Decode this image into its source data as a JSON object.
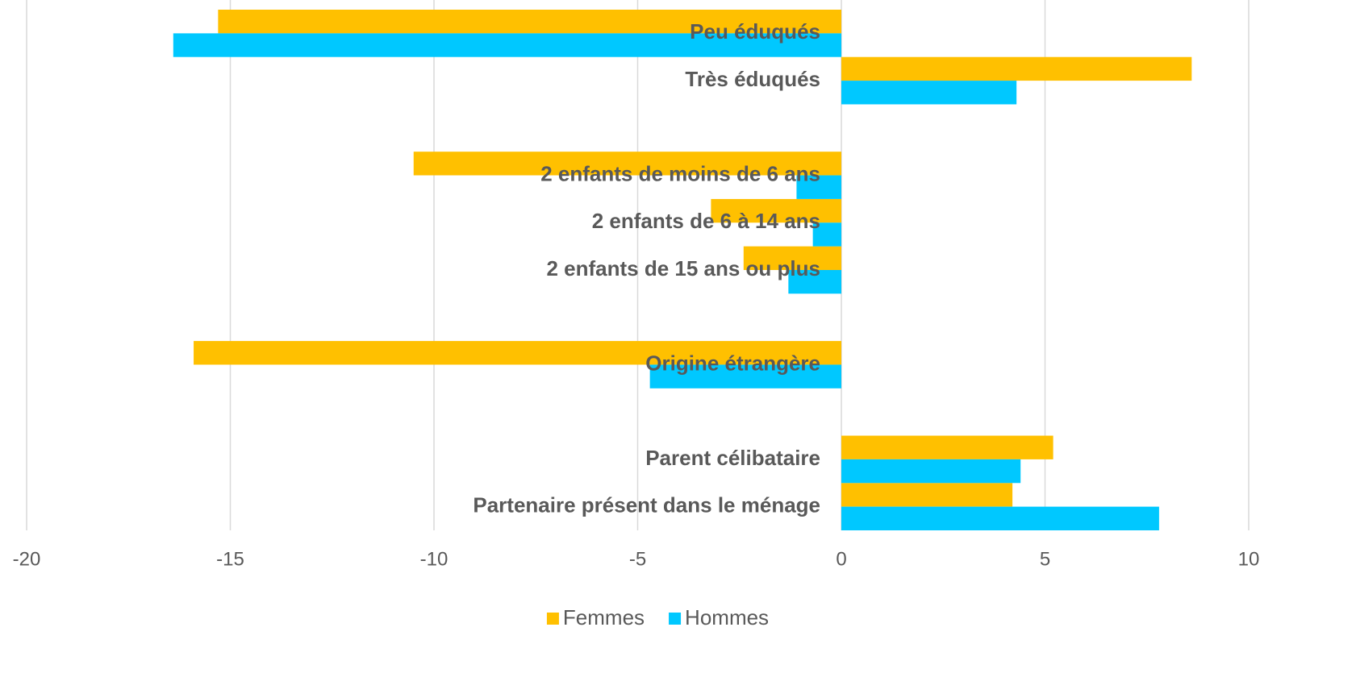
{
  "chart_data": {
    "type": "barh",
    "categories": [
      "Peu éduqués",
      "Très éduqués",
      null,
      "2 enfants de moins de 6 ans",
      "2 enfants de 6 à 14 ans",
      "2 enfants de 15 ans ou plus",
      null,
      "Origine étrangère",
      null,
      "Parent célibataire",
      "Partenaire présent dans le ménage"
    ],
    "series": [
      {
        "name": "Femmes",
        "color": "#ffc000",
        "values": [
          -15.3,
          8.6,
          null,
          -10.5,
          -3.2,
          -2.4,
          null,
          -15.9,
          null,
          5.2,
          4.2
        ]
      },
      {
        "name": "Hommes",
        "color": "#00c8ff",
        "values": [
          -16.4,
          4.3,
          null,
          -1.1,
          -0.7,
          -1.3,
          null,
          -4.7,
          null,
          4.4,
          7.8
        ]
      }
    ],
    "xlim": [
      -20,
      10
    ],
    "xticks": [
      -20,
      -15,
      -10,
      -5,
      0,
      5,
      10
    ],
    "grid": true,
    "legend": "bottom"
  }
}
